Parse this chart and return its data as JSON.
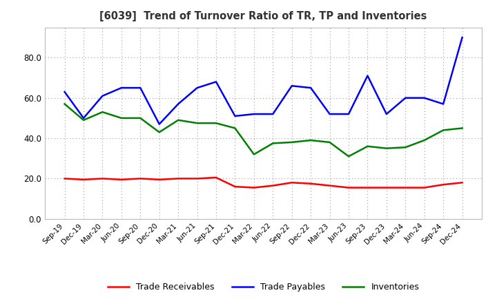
{
  "title": "[6039]  Trend of Turnover Ratio of TR, TP and Inventories",
  "x_labels": [
    "Sep-19",
    "Dec-19",
    "Mar-20",
    "Jun-20",
    "Sep-20",
    "Dec-20",
    "Mar-21",
    "Jun-21",
    "Sep-21",
    "Dec-21",
    "Mar-22",
    "Jun-22",
    "Sep-22",
    "Dec-22",
    "Mar-23",
    "Jun-23",
    "Sep-23",
    "Dec-23",
    "Mar-24",
    "Jun-24",
    "Sep-24",
    "Dec-24"
  ],
  "trade_receivables": [
    20.0,
    19.5,
    20.0,
    19.5,
    20.0,
    19.5,
    20.0,
    20.0,
    20.5,
    16.0,
    15.5,
    16.5,
    18.0,
    17.5,
    16.5,
    15.5,
    15.5,
    15.5,
    15.5,
    15.5,
    17.0,
    18.0
  ],
  "trade_payables": [
    63.0,
    50.0,
    61.0,
    65.0,
    65.0,
    47.0,
    57.0,
    65.0,
    68.0,
    51.0,
    52.0,
    52.0,
    66.0,
    65.0,
    52.0,
    52.0,
    71.0,
    52.0,
    60.0,
    60.0,
    57.0,
    90.0
  ],
  "inventories": [
    57.0,
    49.0,
    53.0,
    50.0,
    50.0,
    43.0,
    49.0,
    47.5,
    47.5,
    45.0,
    32.0,
    37.5,
    38.0,
    39.0,
    38.0,
    31.0,
    36.0,
    35.0,
    35.5,
    39.0,
    44.0,
    45.0
  ],
  "ylim": [
    0,
    95
  ],
  "yticks": [
    0.0,
    20.0,
    40.0,
    60.0,
    80.0
  ],
  "legend_labels": [
    "Trade Receivables",
    "Trade Payables",
    "Inventories"
  ],
  "line_colors": [
    "#ff0000",
    "#0000ff",
    "#008000"
  ],
  "title_color": "#333333",
  "background_color": "#ffffff",
  "axes_bg_color": "#ffffff",
  "grid_color": "#999999"
}
